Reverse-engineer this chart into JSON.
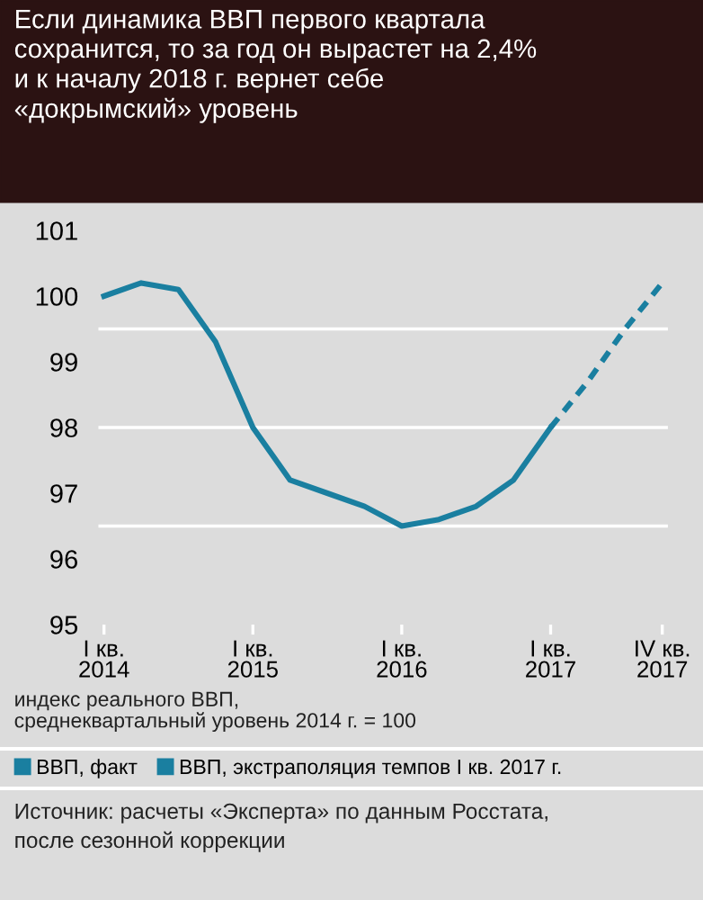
{
  "chart_data": {
    "type": "line",
    "title": "Если динамика ВВП первого квартала\nсохранится, то за год он вырастет на 2,4%\nи к началу 2018 г. вернет себе\n«докрымский» уровень",
    "categories": [
      "I кв.\n2014",
      null,
      null,
      null,
      "I кв.\n2015",
      null,
      null,
      null,
      "I кв.\n2016",
      null,
      null,
      null,
      "I кв.\n2017",
      null,
      null,
      "IV кв.\n2017"
    ],
    "series": [
      {
        "name": "ВВП, факт",
        "color": "#1a7fa0",
        "line_style": "solid",
        "values": [
          100.0,
          100.2,
          100.1,
          99.3,
          98.0,
          97.2,
          97.0,
          96.8,
          96.5,
          96.6,
          96.8,
          97.2,
          98.0,
          null,
          null,
          null
        ]
      },
      {
        "name": "ВВП, экстраполяция темпов I кв. 2017 г.",
        "color": "#1a7fa0",
        "line_style": "dashed",
        "values": [
          null,
          null,
          null,
          null,
          null,
          null,
          null,
          null,
          null,
          null,
          null,
          null,
          98.0,
          98.7,
          99.5,
          100.2
        ]
      }
    ],
    "ylim": [
      95,
      101
    ],
    "yticks": [
      95,
      96,
      97,
      98,
      99,
      100,
      101
    ],
    "ref_lines": [
      {
        "axis": "y",
        "value": 96.5,
        "color": "#ffffff"
      },
      {
        "axis": "y",
        "value": 98,
        "color": "#ffffff"
      },
      {
        "axis": "y",
        "value": 99.5,
        "color": "#ffffff"
      }
    ],
    "grid": false,
    "legend": "bottom",
    "marker": "none",
    "annotations": [
      "индекс реального ВВП,\nсреднеквартальный уровень 2014 г. = 100",
      "Источник: расчеты «Эксперта» по данным Росстата,\nпосле сезонной коррекции"
    ]
  }
}
